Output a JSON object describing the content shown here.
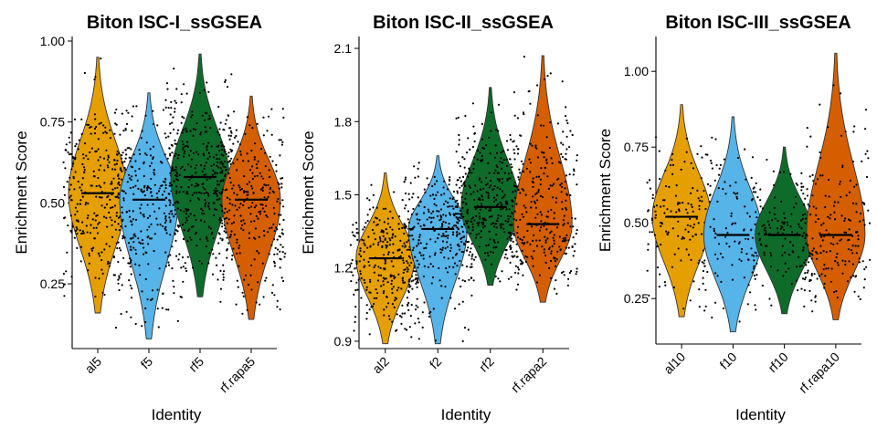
{
  "chart_data": [
    {
      "type": "violin",
      "title": "Biton ISC-I_ssGSEA",
      "xlabel": "Identity",
      "ylabel": "Enrichment Score",
      "ylim": [
        0.05,
        1.0
      ],
      "yticks": [
        "0.25",
        "0.50",
        "0.75",
        "1.00"
      ],
      "categories": [
        "al5",
        "f5",
        "rf5",
        "rf.rapa5"
      ],
      "colors": [
        "#E69F00",
        "#56B4E9",
        "#0F6B2A",
        "#D55E00"
      ],
      "series": [
        {
          "category": "al5",
          "min": 0.16,
          "max": 0.95,
          "median": 0.53,
          "count": 300
        },
        {
          "category": "f5",
          "min": 0.08,
          "max": 0.84,
          "median": 0.51,
          "count": 300
        },
        {
          "category": "rf5",
          "min": 0.21,
          "max": 0.96,
          "median": 0.58,
          "count": 400
        },
        {
          "category": "rf.rapa5",
          "min": 0.14,
          "max": 0.83,
          "median": 0.51,
          "count": 300
        }
      ]
    },
    {
      "type": "violin",
      "title": "Biton ISC-II_ssGSEA",
      "xlabel": "Identity",
      "ylabel": "Enrichment Score",
      "ylim": [
        0.87,
        2.13
      ],
      "yticks": [
        "0.9",
        "1.2",
        "1.5",
        "1.8",
        "2.1"
      ],
      "categories": [
        "al2",
        "f2",
        "rf2",
        "rf.rapa2"
      ],
      "colors": [
        "#E69F00",
        "#56B4E9",
        "#0F6B2A",
        "#D55E00"
      ],
      "series": [
        {
          "category": "al2",
          "min": 0.89,
          "max": 1.59,
          "median": 1.24,
          "count": 300
        },
        {
          "category": "f2",
          "min": 0.89,
          "max": 1.66,
          "median": 1.36,
          "count": 300
        },
        {
          "category": "rf2",
          "min": 1.13,
          "max": 1.94,
          "median": 1.45,
          "count": 400
        },
        {
          "category": "rf.rapa2",
          "min": 1.06,
          "max": 2.07,
          "median": 1.38,
          "count": 300
        }
      ]
    },
    {
      "type": "violin",
      "title": "Biton ISC-III_ssGSEA",
      "xlabel": "Identity",
      "ylabel": "Enrichment Score",
      "ylim": [
        0.1,
        1.1
      ],
      "yticks": [
        "0.25",
        "0.50",
        "0.75",
        "1.00"
      ],
      "categories": [
        "al10",
        "f10",
        "rf10",
        "rf.rapa10"
      ],
      "colors": [
        "#E69F00",
        "#56B4E9",
        "#0F6B2A",
        "#D55E00"
      ],
      "series": [
        {
          "category": "al10",
          "min": 0.19,
          "max": 0.89,
          "median": 0.52,
          "count": 150
        },
        {
          "category": "f10",
          "min": 0.14,
          "max": 0.85,
          "median": 0.46,
          "count": 120
        },
        {
          "category": "rf10",
          "min": 0.2,
          "max": 0.75,
          "median": 0.46,
          "count": 150
        },
        {
          "category": "rf.rapa10",
          "min": 0.18,
          "max": 1.06,
          "median": 0.46,
          "count": 200
        }
      ]
    }
  ]
}
